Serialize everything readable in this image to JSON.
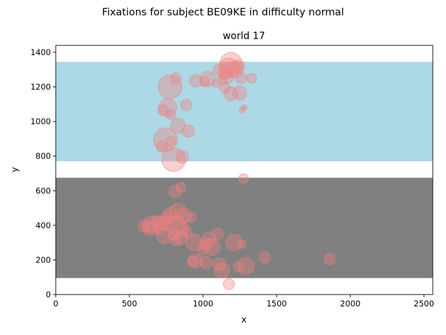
{
  "suptitle": "Fixations for subject BE09KE in difficulty normal",
  "chart_data": {
    "type": "scatter",
    "title": "world 17",
    "xlabel": "x",
    "ylabel": "y",
    "xlim": [
      0,
      2560
    ],
    "ylim": [
      0,
      1440
    ],
    "xticks": [
      0,
      500,
      1000,
      1500,
      2000,
      2500
    ],
    "yticks": [
      0,
      200,
      400,
      600,
      800,
      1000,
      1200,
      1400
    ],
    "grid": false,
    "regions": [
      {
        "y0": 770,
        "y1": 1345,
        "color": "#add8e6"
      },
      {
        "y0": 95,
        "y1": 675,
        "color": "#808080"
      }
    ],
    "point_color": "#f08080",
    "points": [
      {
        "x": 1190,
        "y": 1335,
        "s": 16
      },
      {
        "x": 1175,
        "y": 1310,
        "s": 14
      },
      {
        "x": 1215,
        "y": 1300,
        "s": 12
      },
      {
        "x": 1150,
        "y": 1285,
        "s": 10
      },
      {
        "x": 1110,
        "y": 1295,
        "s": 9
      },
      {
        "x": 1240,
        "y": 1320,
        "s": 9
      },
      {
        "x": 1160,
        "y": 1260,
        "s": 10
      },
      {
        "x": 1130,
        "y": 1240,
        "s": 7
      },
      {
        "x": 1090,
        "y": 1220,
        "s": 6
      },
      {
        "x": 1030,
        "y": 1245,
        "s": 11
      },
      {
        "x": 950,
        "y": 1235,
        "s": 9
      },
      {
        "x": 1010,
        "y": 1230,
        "s": 7
      },
      {
        "x": 1330,
        "y": 1250,
        "s": 7
      },
      {
        "x": 1260,
        "y": 1250,
        "s": 8
      },
      {
        "x": 1150,
        "y": 1195,
        "s": 8
      },
      {
        "x": 1250,
        "y": 1165,
        "s": 10
      },
      {
        "x": 1190,
        "y": 1160,
        "s": 10
      },
      {
        "x": 1280,
        "y": 1080,
        "s": 4
      },
      {
        "x": 1265,
        "y": 1065,
        "s": 4
      },
      {
        "x": 815,
        "y": 1250,
        "s": 8
      },
      {
        "x": 775,
        "y": 1200,
        "s": 17
      },
      {
        "x": 760,
        "y": 1080,
        "s": 13
      },
      {
        "x": 730,
        "y": 1065,
        "s": 8
      },
      {
        "x": 885,
        "y": 1095,
        "s": 8
      },
      {
        "x": 780,
        "y": 1040,
        "s": 7
      },
      {
        "x": 830,
        "y": 975,
        "s": 11
      },
      {
        "x": 900,
        "y": 945,
        "s": 9
      },
      {
        "x": 745,
        "y": 895,
        "s": 17
      },
      {
        "x": 720,
        "y": 855,
        "s": 8
      },
      {
        "x": 780,
        "y": 885,
        "s": 7
      },
      {
        "x": 800,
        "y": 780,
        "s": 17
      },
      {
        "x": 860,
        "y": 795,
        "s": 9
      },
      {
        "x": 1275,
        "y": 670,
        "s": 7
      },
      {
        "x": 850,
        "y": 620,
        "s": 7
      },
      {
        "x": 810,
        "y": 595,
        "s": 9
      },
      {
        "x": 830,
        "y": 480,
        "s": 12
      },
      {
        "x": 780,
        "y": 465,
        "s": 10
      },
      {
        "x": 870,
        "y": 455,
        "s": 11
      },
      {
        "x": 920,
        "y": 445,
        "s": 7
      },
      {
        "x": 750,
        "y": 440,
        "s": 9
      },
      {
        "x": 690,
        "y": 420,
        "s": 9
      },
      {
        "x": 720,
        "y": 415,
        "s": 10
      },
      {
        "x": 770,
        "y": 410,
        "s": 11
      },
      {
        "x": 650,
        "y": 405,
        "s": 12
      },
      {
        "x": 600,
        "y": 395,
        "s": 9
      },
      {
        "x": 640,
        "y": 385,
        "s": 11
      },
      {
        "x": 700,
        "y": 380,
        "s": 8
      },
      {
        "x": 820,
        "y": 400,
        "s": 14
      },
      {
        "x": 860,
        "y": 380,
        "s": 10
      },
      {
        "x": 890,
        "y": 360,
        "s": 8
      },
      {
        "x": 740,
        "y": 340,
        "s": 12
      },
      {
        "x": 800,
        "y": 345,
        "s": 8
      },
      {
        "x": 850,
        "y": 330,
        "s": 10
      },
      {
        "x": 820,
        "y": 310,
        "s": 7
      },
      {
        "x": 940,
        "y": 300,
        "s": 12
      },
      {
        "x": 1040,
        "y": 320,
        "s": 10
      },
      {
        "x": 1100,
        "y": 350,
        "s": 8
      },
      {
        "x": 1020,
        "y": 290,
        "s": 9
      },
      {
        "x": 1060,
        "y": 275,
        "s": 12
      },
      {
        "x": 1000,
        "y": 260,
        "s": 8
      },
      {
        "x": 1210,
        "y": 300,
        "s": 12
      },
      {
        "x": 1265,
        "y": 290,
        "s": 6
      },
      {
        "x": 950,
        "y": 195,
        "s": 10
      },
      {
        "x": 930,
        "y": 190,
        "s": 8
      },
      {
        "x": 1020,
        "y": 185,
        "s": 9
      },
      {
        "x": 1110,
        "y": 175,
        "s": 9
      },
      {
        "x": 1290,
        "y": 165,
        "s": 12
      },
      {
        "x": 1240,
        "y": 160,
        "s": 7
      },
      {
        "x": 1130,
        "y": 140,
        "s": 11
      },
      {
        "x": 1420,
        "y": 215,
        "s": 8
      },
      {
        "x": 1860,
        "y": 205,
        "s": 8
      },
      {
        "x": 1175,
        "y": 60,
        "s": 8
      }
    ]
  }
}
